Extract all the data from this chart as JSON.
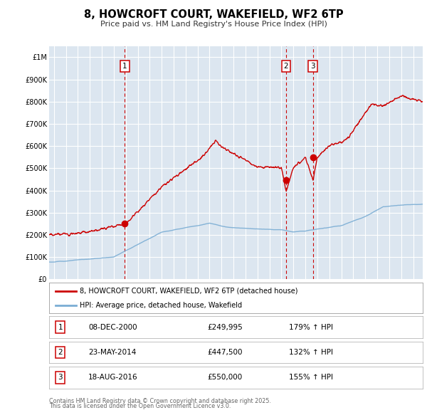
{
  "title": "8, HOWCROFT COURT, WAKEFIELD, WF2 6TP",
  "subtitle": "Price paid vs. HM Land Registry's House Price Index (HPI)",
  "legend_label_red": "8, HOWCROFT COURT, WAKEFIELD, WF2 6TP (detached house)",
  "legend_label_blue": "HPI: Average price, detached house, Wakefield",
  "footer_line1": "Contains HM Land Registry data © Crown copyright and database right 2025.",
  "footer_line2": "This data is licensed under the Open Government Licence v3.0.",
  "transactions": [
    {
      "num": 1,
      "date": "08-DEC-2000",
      "price": "£249,995",
      "hpi": "179% ↑ HPI",
      "year": 2000.92,
      "value": 249995
    },
    {
      "num": 2,
      "date": "23-MAY-2014",
      "price": "£447,500",
      "hpi": "132% ↑ HPI",
      "year": 2014.39,
      "value": 447500
    },
    {
      "num": 3,
      "date": "18-AUG-2016",
      "price": "£550,000",
      "hpi": "155% ↑ HPI",
      "year": 2016.63,
      "value": 550000
    }
  ],
  "ylim": [
    0,
    1050000
  ],
  "xlim_start": 1994.6,
  "xlim_end": 2025.8,
  "yticks": [
    0,
    100000,
    200000,
    300000,
    400000,
    500000,
    600000,
    700000,
    800000,
    900000,
    1000000
  ],
  "ytick_labels": [
    "£0",
    "£100K",
    "£200K",
    "£300K",
    "£400K",
    "£500K",
    "£600K",
    "£700K",
    "£800K",
    "£900K",
    "£1M"
  ],
  "background_color": "#dce6f0",
  "red_color": "#cc0000",
  "blue_color": "#7aadd4",
  "grid_color": "#ffffff",
  "vline_color": "#cc0000"
}
